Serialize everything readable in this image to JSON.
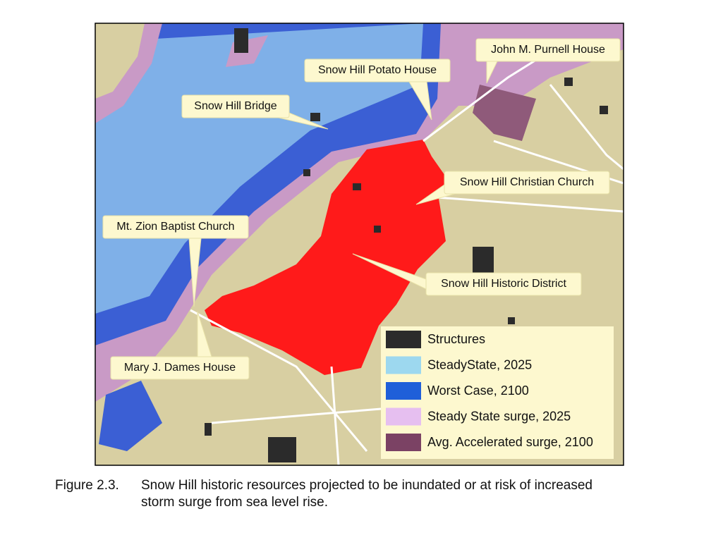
{
  "labels": {
    "purnell": "John M. Purnell House",
    "potato": "Snow Hill Potato House",
    "bridge": "Snow Hill Bridge",
    "christian": "Snow Hill Christian Church",
    "zion": "Mt. Zion Baptist Church",
    "district": "Snow Hill Historic District",
    "dames": "Mary J. Dames House"
  },
  "legend": [
    {
      "name": "Structures",
      "color": "#2b2b2b"
    },
    {
      "name": "SteadyState, 2025",
      "color": "#9dd8ef"
    },
    {
      "name": "Worst Case, 2100",
      "color": "#1f5fd9"
    },
    {
      "name": "Steady State surge, 2025",
      "color": "#e6bff0"
    },
    {
      "name": "Avg. Accelerated surge, 2100",
      "color": "#7b4264"
    }
  ],
  "caption": {
    "number": "Figure 2.3.",
    "lines": [
      "Snow Hill historic resources projected to be inundated or at risk of increased",
      "storm surge from sea level rise."
    ]
  }
}
